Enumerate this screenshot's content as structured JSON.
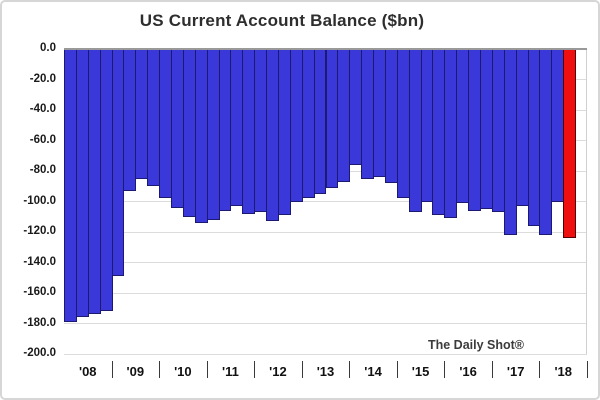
{
  "title": "US Current Account Balance ($bn)",
  "watermark": "The Daily Shot®",
  "y_axis": {
    "tick_labels": [
      "0.0",
      "-20.0",
      "-40.0",
      "-60.0",
      "-80.0",
      "-100.0",
      "-120.0",
      "-140.0",
      "-160.0",
      "-180.0",
      "-200.0"
    ]
  },
  "x_axis": {
    "year_labels": [
      "'08",
      "'09",
      "'10",
      "'11",
      "'12",
      "'13",
      "'14",
      "'15",
      "'16",
      "'17",
      "'18"
    ]
  },
  "colors": {
    "bar_blue": "#3b38da",
    "bar_blue_border": "#1c1a70",
    "bar_red": "#ee0f0f",
    "bar_red_border": "#550000",
    "gridline": "#dcdcdc",
    "zero_line": "#999999",
    "label": "#1a1a1a"
  },
  "chart_data": {
    "type": "bar",
    "title": "US Current Account Balance ($bn)",
    "unit": "$bn",
    "ylim": [
      -200,
      0
    ],
    "y_tick_step": 20,
    "grid": "horizontal",
    "legend": "none",
    "bars_per_year": 4,
    "total_category_slots": 44,
    "highlight_last": true,
    "highlight_meaning": "latest quarter (red)",
    "categories": [
      "2008 Q1",
      "2008 Q2",
      "2008 Q3",
      "2008 Q4",
      "2009 Q1",
      "2009 Q2",
      "2009 Q3",
      "2009 Q4",
      "2010 Q1",
      "2010 Q2",
      "2010 Q3",
      "2010 Q4",
      "2011 Q1",
      "2011 Q2",
      "2011 Q3",
      "2011 Q4",
      "2012 Q1",
      "2012 Q2",
      "2012 Q3",
      "2012 Q4",
      "2013 Q1",
      "2013 Q2",
      "2013 Q3",
      "2013 Q4",
      "2014 Q1",
      "2014 Q2",
      "2014 Q3",
      "2014 Q4",
      "2015 Q1",
      "2015 Q2",
      "2015 Q3",
      "2015 Q4",
      "2016 Q1",
      "2016 Q2",
      "2016 Q3",
      "2016 Q4",
      "2017 Q1",
      "2017 Q2",
      "2017 Q3",
      "2017 Q4",
      "2018 Q1",
      "2018 Q2",
      "2018 Q3"
    ],
    "values": [
      -179,
      -176,
      -174,
      -172,
      -149,
      -93,
      -85,
      -90,
      -98,
      -104,
      -110,
      -114,
      -112,
      -106,
      -103,
      -108,
      -107,
      -113,
      -109,
      -100,
      -98,
      -95,
      -91,
      -87,
      -76,
      -85,
      -84,
      -88,
      -98,
      -107,
      -100,
      -109,
      -111,
      -101,
      -106,
      -105,
      -107,
      -122,
      -103,
      -116,
      -122,
      -100,
      -124
    ]
  }
}
